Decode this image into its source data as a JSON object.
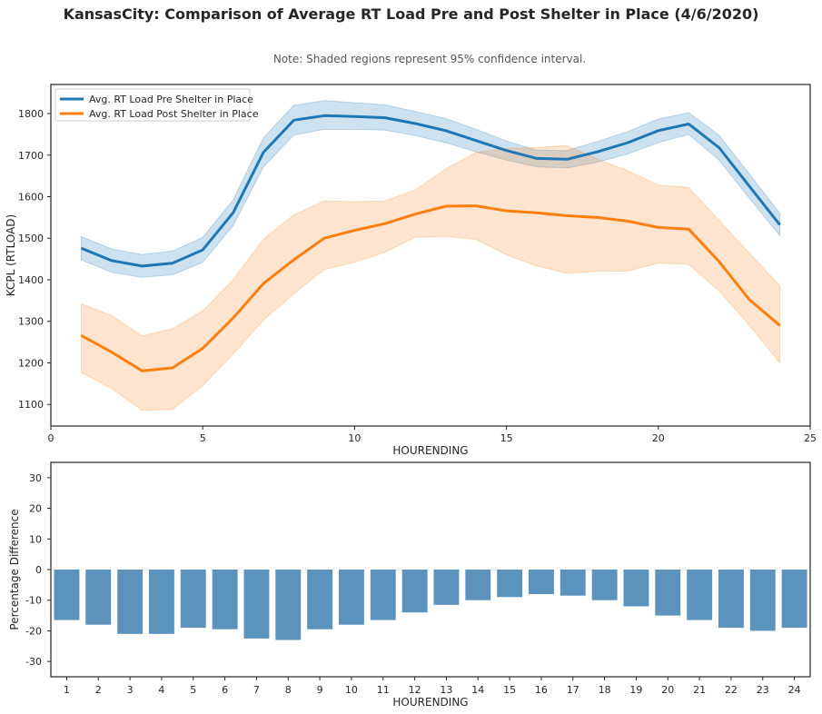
{
  "title": "KansasCity: Comparison of Average RT Load Pre and Post Shelter in Place (4/6/2020)",
  "subtitle": "Note: Shaded regions represent 95% confidence interval.",
  "colors": {
    "pre": "#1f77b4",
    "post": "#ff7f0e",
    "bar": "#5b93bd",
    "frame": "#262626"
  },
  "chart_data": [
    {
      "type": "line",
      "xlabel": "HOURENDING",
      "ylabel": "KCPL (RTLOAD)",
      "xlim": [
        0,
        25
      ],
      "ylim": [
        1048,
        1870
      ],
      "xticks": [
        0,
        5,
        10,
        15,
        20,
        25
      ],
      "yticks": [
        1100,
        1200,
        1300,
        1400,
        1500,
        1600,
        1700,
        1800
      ],
      "legend_position": "top-left",
      "grid": false,
      "x": [
        1,
        2,
        3,
        4,
        5,
        6,
        7,
        8,
        9,
        10,
        11,
        12,
        13,
        14,
        15,
        16,
        17,
        18,
        19,
        20,
        21,
        22,
        23,
        24
      ],
      "series": [
        {
          "name": "Avg. RT Load Pre Shelter in Place",
          "color": "#1f77b4",
          "values": [
            1476,
            1446,
            1433,
            1440,
            1472,
            1561,
            1707,
            1784,
            1795,
            1793,
            1790,
            1776,
            1759,
            1735,
            1711,
            1692,
            1690,
            1708,
            1730,
            1759,
            1775,
            1718,
            1625,
            1532
          ],
          "ci_lower": [
            1448,
            1418,
            1406,
            1412,
            1442,
            1530,
            1672,
            1748,
            1762,
            1762,
            1760,
            1747,
            1730,
            1708,
            1688,
            1672,
            1669,
            1683,
            1703,
            1730,
            1750,
            1688,
            1596,
            1506
          ],
          "ci_upper": [
            1504,
            1474,
            1461,
            1469,
            1502,
            1592,
            1742,
            1820,
            1831,
            1826,
            1821,
            1805,
            1788,
            1762,
            1734,
            1712,
            1711,
            1733,
            1757,
            1787,
            1802,
            1748,
            1654,
            1560
          ]
        },
        {
          "name": "Avg. RT Load Post Shelter in Place",
          "color": "#ff7f0e",
          "values": [
            1266,
            1226,
            1181,
            1188,
            1235,
            1308,
            1391,
            1448,
            1500,
            1519,
            1535,
            1558,
            1577,
            1578,
            1566,
            1561,
            1554,
            1550,
            1541,
            1526,
            1522,
            1444,
            1352,
            1290
          ],
          "ci_lower": [
            1177,
            1138,
            1086,
            1088,
            1145,
            1221,
            1303,
            1366,
            1425,
            1442,
            1466,
            1502,
            1504,
            1497,
            1460,
            1433,
            1416,
            1420,
            1421,
            1440,
            1437,
            1373,
            1290,
            1200
          ],
          "ci_upper": [
            1342,
            1314,
            1265,
            1282,
            1325,
            1400,
            1498,
            1556,
            1590,
            1588,
            1590,
            1616,
            1667,
            1707,
            1716,
            1718,
            1723,
            1690,
            1662,
            1628,
            1622,
            1543,
            1464,
            1386
          ]
        }
      ]
    },
    {
      "type": "bar",
      "xlabel": "HOURENDING",
      "ylabel": "Percentage Difference",
      "ylim": [
        -35,
        35
      ],
      "yticks": [
        -30,
        -20,
        -10,
        0,
        10,
        20,
        30
      ],
      "grid": false,
      "categories": [
        "1",
        "2",
        "3",
        "4",
        "5",
        "6",
        "7",
        "8",
        "9",
        "10",
        "11",
        "12",
        "13",
        "14",
        "15",
        "16",
        "17",
        "18",
        "19",
        "20",
        "21",
        "22",
        "23",
        "24"
      ],
      "values": [
        -16.5,
        -18.0,
        -21.0,
        -21.0,
        -19.0,
        -19.5,
        -22.5,
        -23.0,
        -19.5,
        -18.0,
        -16.5,
        -14.0,
        -11.5,
        -10.0,
        -9.0,
        -8.0,
        -8.5,
        -10.0,
        -12.0,
        -15.0,
        -16.5,
        -19.0,
        -20.0,
        -19.0
      ]
    }
  ]
}
